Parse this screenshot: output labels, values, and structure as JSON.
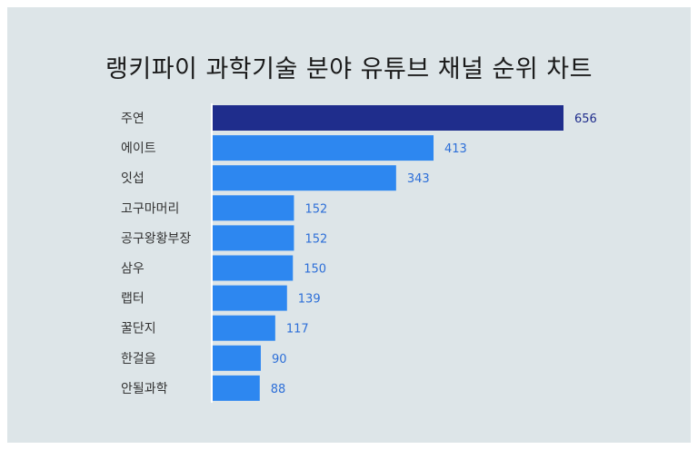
{
  "title": "랭키파이 과학기술 분야 유튜브 채널 순위 차트",
  "colors": {
    "background": "#dde5e8",
    "top_bar": "#1f2d8c",
    "bar": "#2d87f0",
    "top_value_label": "#1f2d8c",
    "value_label": "#2d6fd8",
    "axis": "#ffffff"
  },
  "chart_data": {
    "type": "bar",
    "orientation": "horizontal",
    "title": "랭키파이 과학기술 분야 유튜브 채널 순위 차트",
    "categories": [
      "주연",
      "에이트",
      "잇섭",
      "고구마머리",
      "공구왕황부장",
      "삼우",
      "랩터",
      "꿀단지",
      "한걸음",
      "안될과학"
    ],
    "values": [
      656,
      413,
      343,
      152,
      152,
      150,
      139,
      117,
      90,
      88
    ],
    "xlabel": "",
    "ylabel": "",
    "xlim": [
      0,
      656
    ],
    "grid": false,
    "legend": "none",
    "highlight_index": 0
  }
}
